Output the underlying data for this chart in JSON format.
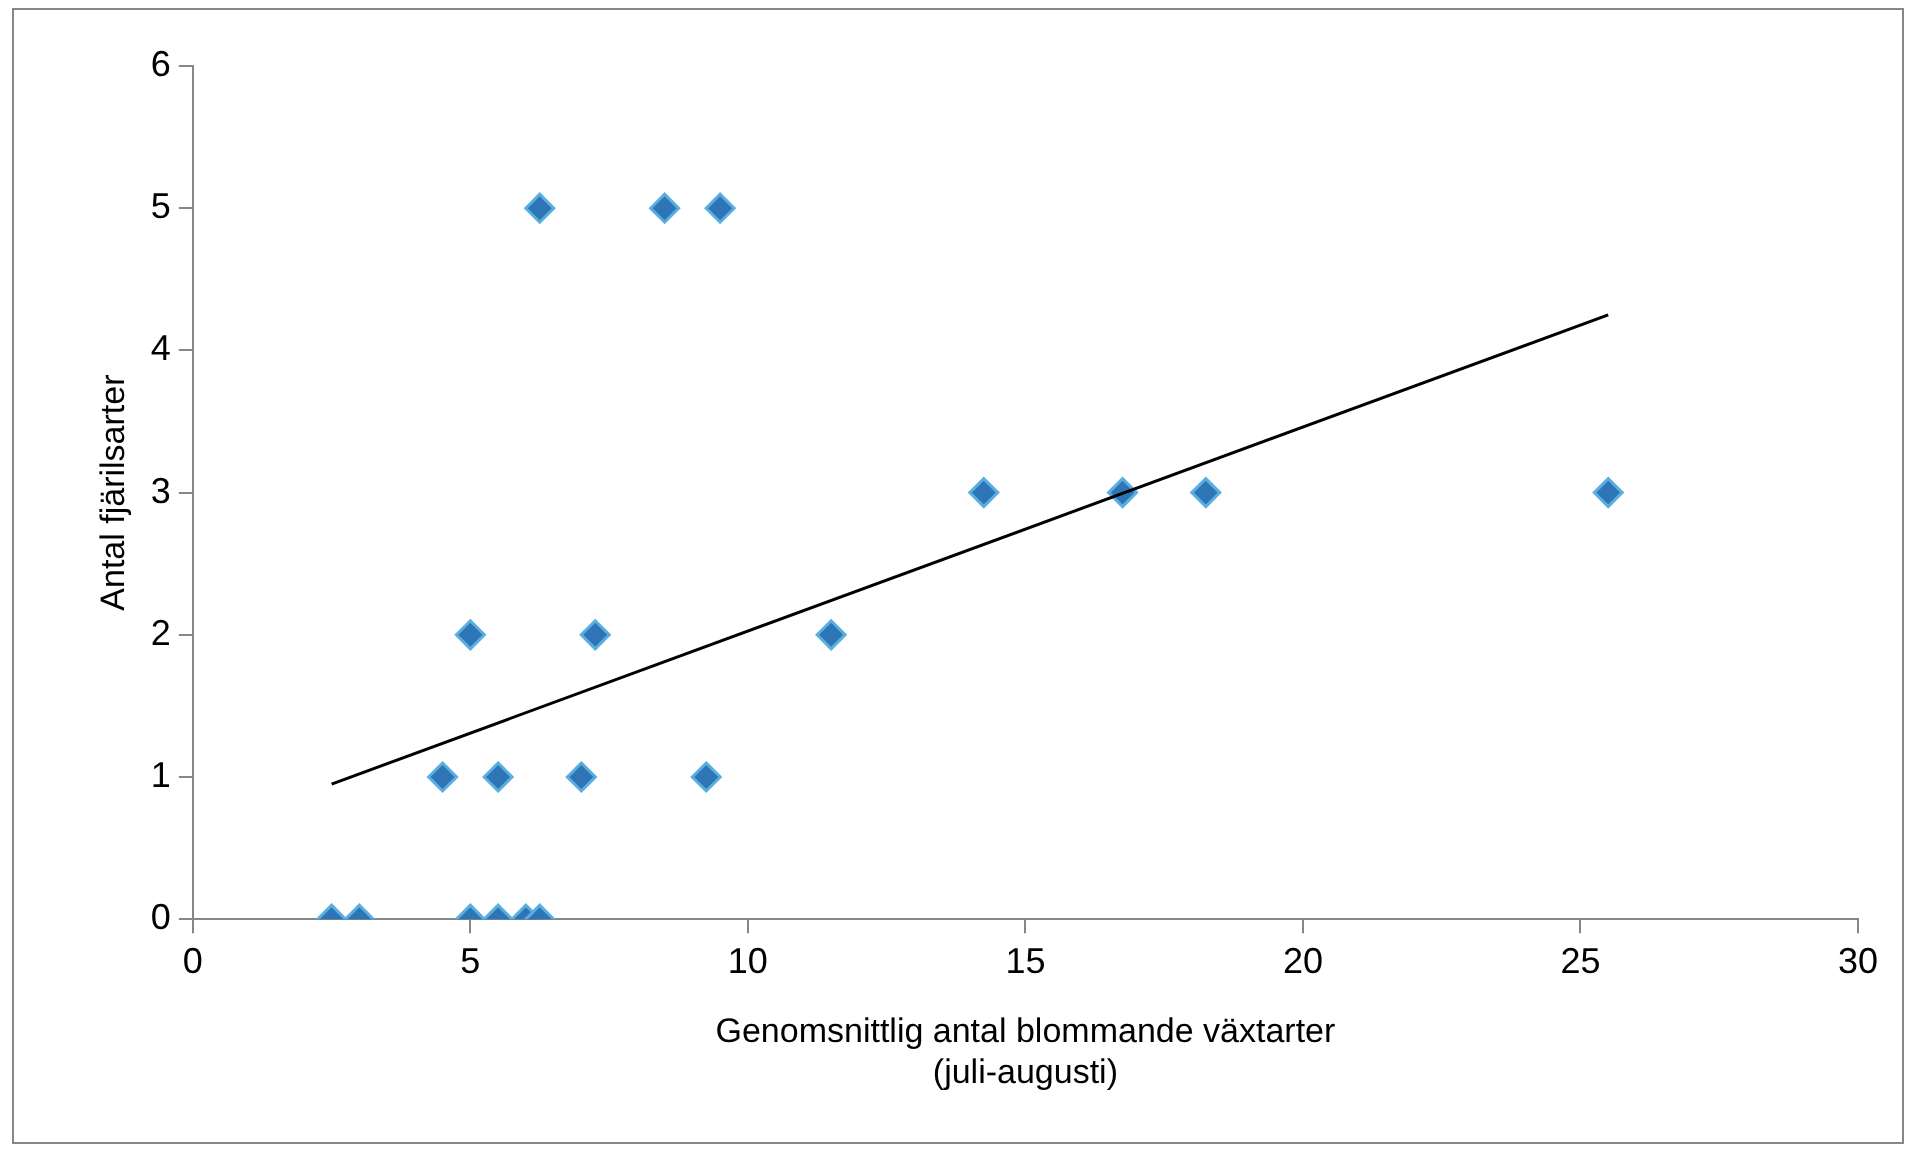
{
  "chart_data": {
    "type": "scatter",
    "xlabel": "Genomsnittlig antal blommande växtarter\n(juli-augusti)",
    "ylabel": "Antal fjärilsarter",
    "xlim": [
      0,
      30
    ],
    "xticks": [
      0,
      5,
      10,
      15,
      20,
      25,
      30
    ],
    "ylim": [
      0,
      6
    ],
    "yticks": [
      0,
      1,
      2,
      3,
      4,
      5,
      6
    ],
    "grid": false,
    "legend": false,
    "marker": "diamond",
    "series": [
      {
        "color": "#2e75b6",
        "x": [
          2.5,
          3,
          5,
          5.5,
          6,
          6.25,
          4.5,
          5.5,
          7,
          9.25,
          5,
          7.25,
          11.5,
          14.25,
          16.75,
          18.25,
          25.5,
          6.25,
          8.5,
          9.5
        ],
        "values": [
          0,
          0,
          0,
          0,
          0,
          0,
          1,
          1,
          1,
          1,
          2,
          2,
          2,
          3,
          3,
          3,
          3,
          5,
          5,
          5
        ]
      },
      {
        "type": "line",
        "color": "#000000",
        "marker": "none",
        "line_style": "solid",
        "x": [
          2.5,
          25.5
        ],
        "values": [
          0.95,
          4.25
        ]
      }
    ]
  }
}
